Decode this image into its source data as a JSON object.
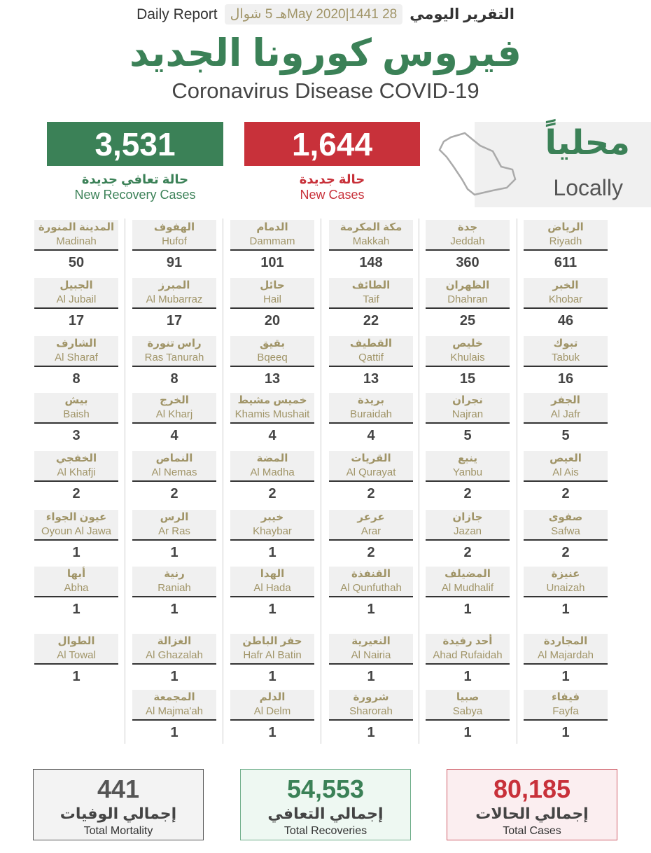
{
  "header": {
    "report_en": "Daily Report",
    "date": "28 May 2020|1441هـ 5 شوال",
    "report_ar": "التقرير اليومي"
  },
  "title_ar": "فيروس كورونا الجديد",
  "title_en": "Coronavirus Disease COVID-19",
  "recovery": {
    "value": "3,531",
    "label_ar": "حالة تعافي جديدة",
    "label_en": "New Recovery Cases"
  },
  "new_cases": {
    "value": "1,644",
    "label_ar": "حالة جديدة",
    "label_en": "New Cases"
  },
  "local": {
    "ar": "محلياً",
    "en": "Locally",
    "icon": "saudi-map-outline-icon"
  },
  "colors": {
    "green": "#3b8157",
    "red": "#c8313a",
    "gold": "#a09467",
    "gray": "#f0f0f0"
  },
  "rows": [
    [
      [
        "الرياض",
        "Riyadh",
        "611"
      ],
      [
        "جدة",
        "Jeddah",
        "360"
      ],
      [
        "مكة المكرمة",
        "Makkah",
        "148"
      ],
      [
        "الدمام",
        "Dammam",
        "101"
      ],
      [
        "الهفوف",
        "Hufof",
        "91"
      ],
      [
        "المدينة المنورة",
        "Madinah",
        "50"
      ]
    ],
    [
      [
        "الخبر",
        "Khobar",
        "46"
      ],
      [
        "الظهران",
        "Dhahran",
        "25"
      ],
      [
        "الطائف",
        "Taif",
        "22"
      ],
      [
        "حائل",
        "Hail",
        "20"
      ],
      [
        "المبرز",
        "Al Mubarraz",
        "17"
      ],
      [
        "الجبيل",
        "Al Jubail",
        "17"
      ]
    ],
    [
      [
        "تبوك",
        "Tabuk",
        "16"
      ],
      [
        "خليص",
        "Khulais",
        "15"
      ],
      [
        "القطيف",
        "Qattif",
        "13"
      ],
      [
        "بقيق",
        "Bqeeq",
        "13"
      ],
      [
        "راس تنورة",
        "Ras Tanurah",
        "8"
      ],
      [
        "الشارف",
        "Al Sharaf",
        "8"
      ]
    ],
    [
      [
        "الجفر",
        "Al Jafr",
        "5"
      ],
      [
        "نجران",
        "Najran",
        "5"
      ],
      [
        "بريدة",
        "Buraidah",
        "4"
      ],
      [
        "خميس مشيط",
        "Khamis Mushait",
        "4"
      ],
      [
        "الخرج",
        "Al Kharj",
        "4"
      ],
      [
        "بيش",
        "Baish",
        "3"
      ]
    ],
    [
      [
        "العيص",
        "Al Ais",
        "2"
      ],
      [
        "ينبع",
        "Yanbu",
        "2"
      ],
      [
        "القريات",
        "Al Qurayat",
        "2"
      ],
      [
        "المضة",
        "Al Madha",
        "2"
      ],
      [
        "النماص",
        "Al Nemas",
        "2"
      ],
      [
        "الخفجي",
        "Al Khafji",
        "2"
      ]
    ],
    [
      [
        "صفوى",
        "Safwa",
        "2"
      ],
      [
        "جازان",
        "Jazan",
        "2"
      ],
      [
        "عرعر",
        "Arar",
        "2"
      ],
      [
        "خيبر",
        "Khaybar",
        "1"
      ],
      [
        "الرس",
        "Ar Ras",
        "1"
      ],
      [
        "عيون الجواء",
        "Oyoun Al Jawa",
        "1"
      ]
    ],
    [
      [
        "عنيزة",
        "Unaizah",
        "1"
      ],
      [
        "المضيلف",
        "Al Mudhalif",
        "1"
      ],
      [
        "القنفذة",
        "Al Qunfuthah",
        "1"
      ],
      [
        "الهدا",
        "Al Hada",
        "1"
      ],
      [
        "رنية",
        "Raniah",
        "1"
      ],
      [
        "أبها",
        "Abha",
        "1"
      ]
    ],
    [
      [
        "المجاردة",
        "Al Majardah",
        "1"
      ],
      [
        "أحد رفيدة",
        "Ahad Rufaidah",
        "1"
      ],
      [
        "النعيرية",
        "Al Nairia",
        "1"
      ],
      [
        "حفر الباطن",
        "Hafr Al Batin",
        "1"
      ],
      [
        "الغزالة",
        "Al Ghazalah",
        "1"
      ],
      [
        "الطوال",
        "Al Towal",
        "1"
      ]
    ],
    [
      [
        "فيفاء",
        "Fayfa",
        "1"
      ],
      [
        "صبيا",
        "Sabya",
        "1"
      ],
      [
        "شرورة",
        "Sharorah",
        "1"
      ],
      [
        "الدلم",
        "Al Delm",
        "1"
      ],
      [
        "المجمعة",
        "Al Majma'ah",
        "1"
      ]
    ]
  ],
  "totals": {
    "mortality": {
      "value": "441",
      "ar": "إجمالي الوفيات",
      "en": "Total Mortality"
    },
    "recoveries": {
      "value": "54,553",
      "ar": "إجمالي التعافي",
      "en": "Total Recoveries"
    },
    "cases": {
      "value": "80,185",
      "ar": "إجمالي الحالات",
      "en": "Total Cases"
    }
  }
}
